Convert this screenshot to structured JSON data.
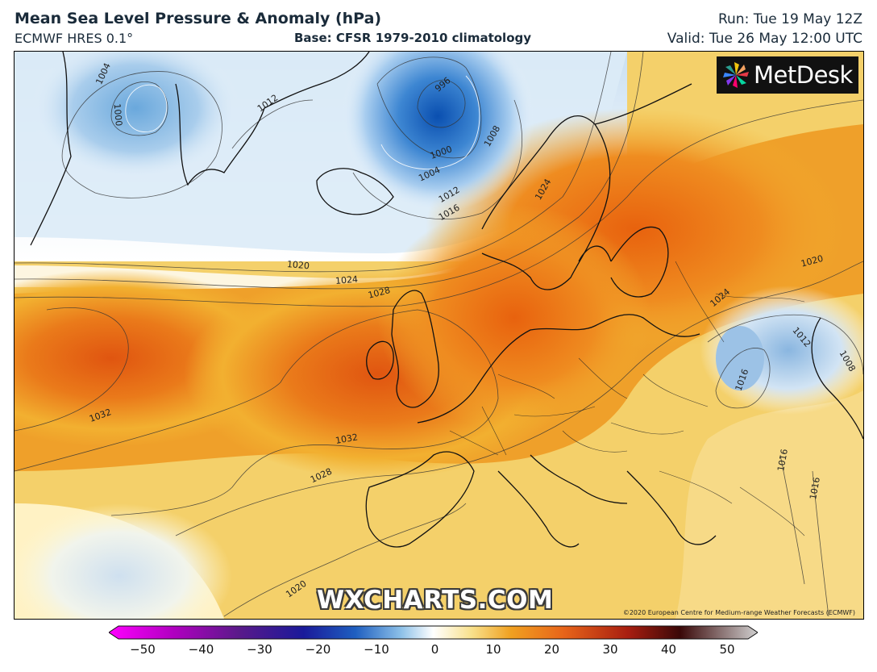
{
  "header": {
    "title": "Mean Sea Level Pressure & Anomaly (hPa)",
    "model": "ECMWF HRES 0.1°",
    "base": "Base: CFSR 1979-2010 climatology",
    "run": "Run: Tue 19 May 12Z",
    "valid": "Valid: Tue 26 May 12:00 UTC"
  },
  "map": {
    "logo_text": "MetDesk",
    "watermark": "WXCHARTS.COM",
    "copyright": "©2020 European Centre for Medium-range Weather Forecasts (ECMWF)",
    "isobar_labels": [
      "996",
      "1000",
      "1000",
      "1004",
      "1004",
      "1008",
      "1008",
      "1012",
      "1012",
      "1012",
      "1016",
      "1016",
      "1016",
      "1016",
      "1020",
      "1020",
      "1020",
      "1024",
      "1024",
      "1024",
      "1028",
      "1028",
      "1032",
      "1032"
    ]
  },
  "colorbar": {
    "ticks": [
      "−50",
      "−40",
      "−30",
      "−20",
      "−10",
      "0",
      "10",
      "20",
      "30",
      "40",
      "50"
    ],
    "min": -50,
    "max": 50,
    "colors": [
      "#ff00ff",
      "#b000c0",
      "#5a1a8a",
      "#1a1a9a",
      "#1f5fc0",
      "#5ca8df",
      "#ffffff",
      "#f2c13a",
      "#e8651a",
      "#8a0f0f",
      "#b8b8b8"
    ]
  }
}
